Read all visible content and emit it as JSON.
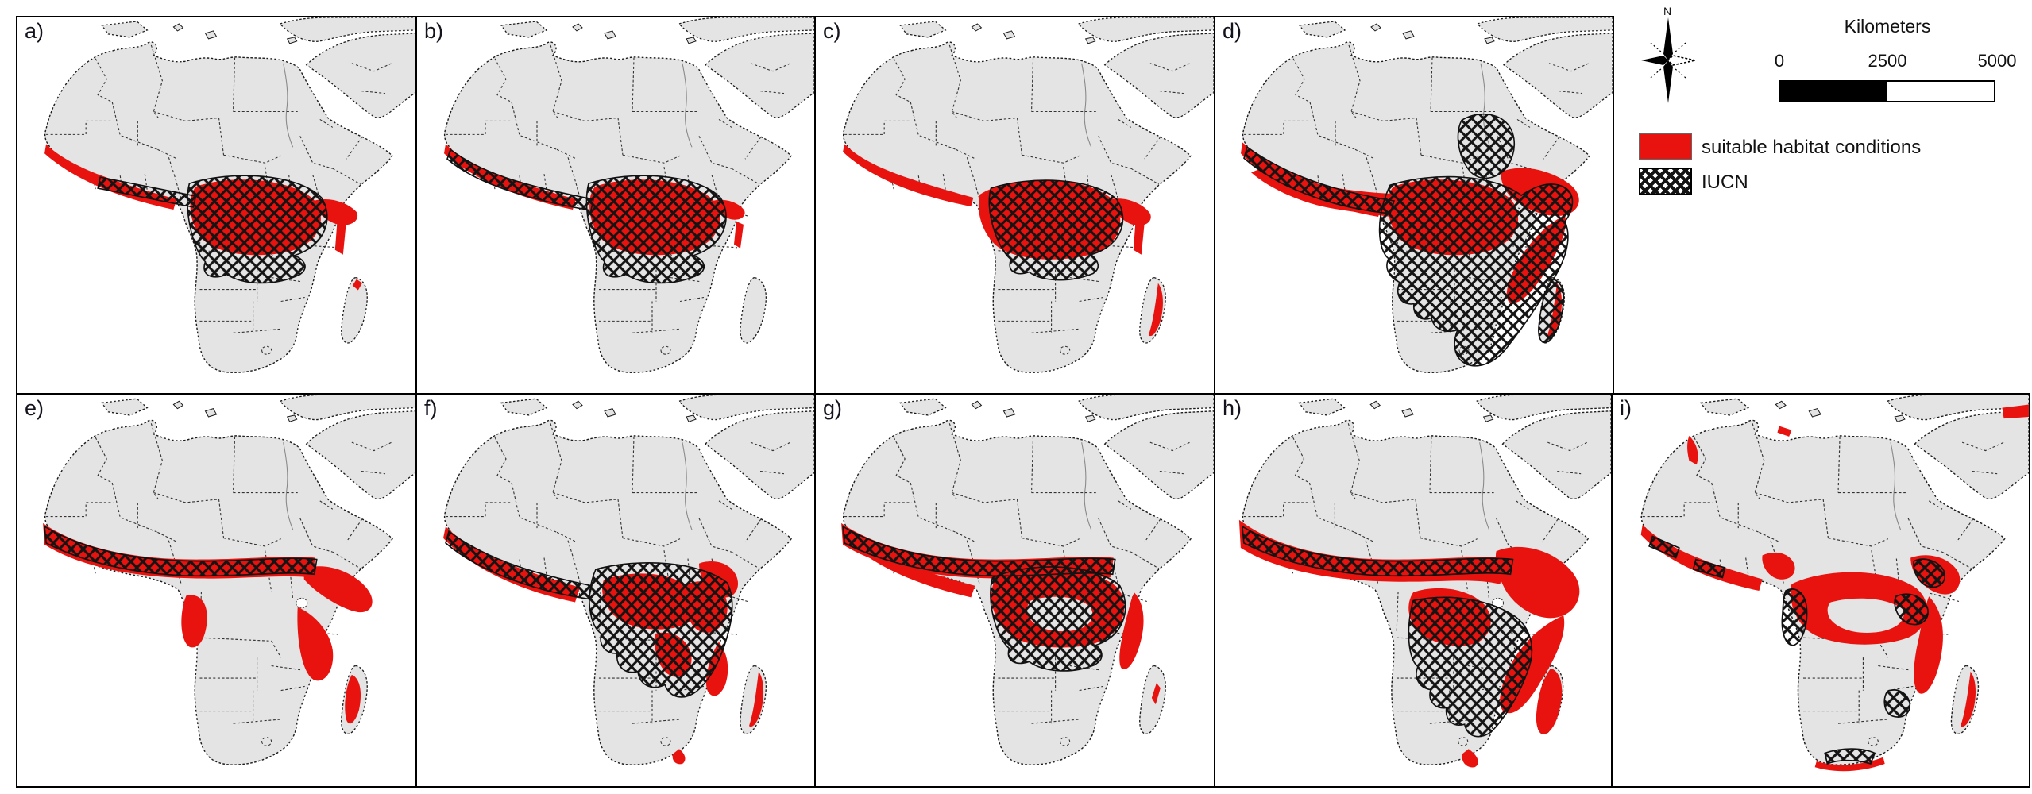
{
  "figure_title": "multi-panel species habitat suitability maps of Africa",
  "panels": [
    {
      "id": "a",
      "label": "a)"
    },
    {
      "id": "b",
      "label": "b)"
    },
    {
      "id": "c",
      "label": "c)"
    },
    {
      "id": "d",
      "label": "d)"
    },
    {
      "id": "e",
      "label": "e)"
    },
    {
      "id": "f",
      "label": "f)"
    },
    {
      "id": "g",
      "label": "g)"
    },
    {
      "id": "h",
      "label": "h)"
    },
    {
      "id": "i",
      "label": "i)"
    }
  ],
  "legend": {
    "north_label": "N",
    "scale_title": "Kilometers",
    "scale_ticks": [
      "0",
      "2500",
      "5000"
    ],
    "items": [
      {
        "swatch": "red",
        "label": "suitable habitat conditions"
      },
      {
        "swatch": "crosshatch",
        "label": "IUCN"
      }
    ]
  },
  "colors": {
    "habitat_red": "#e8120e",
    "land_gray": "#e4e4e4",
    "hatch_black": "#141414",
    "ocean_white": "#ffffff"
  }
}
